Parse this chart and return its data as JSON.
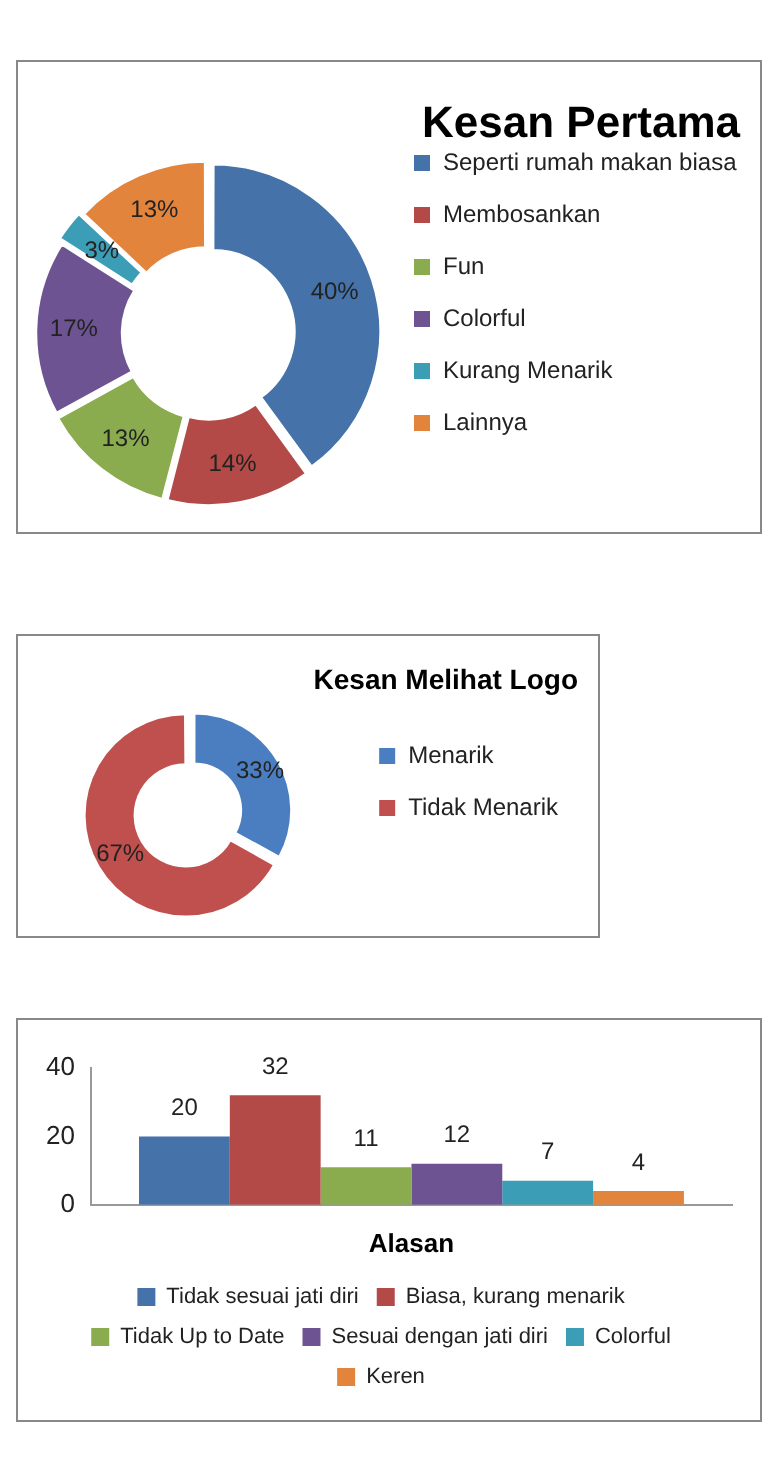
{
  "chart_data": [
    {
      "type": "donut",
      "title": "Kesan Pertama",
      "categories": [
        "Seperti rumah makan biasa",
        "Membosankan",
        "Fun",
        "Colorful",
        "Kurang Menarik",
        "Lainnya"
      ],
      "values": [
        40,
        14,
        13,
        17,
        3,
        13
      ],
      "colors": [
        "#4472a9",
        "#b34a47",
        "#8aab4e",
        "#6d5391",
        "#3c9db6",
        "#e2843c"
      ],
      "value_labels": [
        "40%",
        "14%",
        "13%",
        "17%",
        "3%",
        "13%"
      ],
      "legend": "right"
    },
    {
      "type": "donut",
      "title": "Kesan Melihat Logo",
      "categories": [
        "Menarik",
        "Tidak Menarik"
      ],
      "values": [
        33,
        67
      ],
      "colors": [
        "#4a7ec0",
        "#c0504d"
      ],
      "value_labels": [
        "33%",
        "67%"
      ],
      "legend": "right"
    },
    {
      "type": "bar",
      "xlabel": "Alasan",
      "categories": [
        null
      ],
      "ylim": [
        0,
        40
      ],
      "yticks": [
        0,
        20,
        40
      ],
      "data_labels": true,
      "legend": "bottom",
      "series": [
        {
          "name": "Tidak sesuai jati diri",
          "color": "#4472a9",
          "values": [
            20
          ]
        },
        {
          "name": "Biasa, kurang menarik",
          "color": "#b34a47",
          "values": [
            32
          ]
        },
        {
          "name": "Tidak Up to Date",
          "color": "#8aab4e",
          "values": [
            11
          ]
        },
        {
          "name": "Sesuai dengan jati diri",
          "color": "#6d5391",
          "values": [
            12
          ]
        },
        {
          "name": "Colorful",
          "color": "#3c9db6",
          "values": [
            7
          ]
        },
        {
          "name": "Keren",
          "color": "#e2843c",
          "values": [
            4
          ]
        }
      ]
    }
  ]
}
